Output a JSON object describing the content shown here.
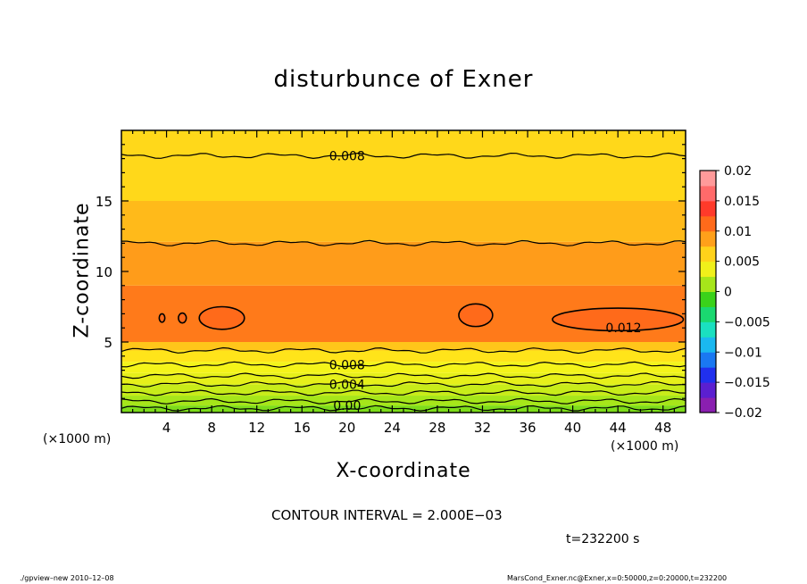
{
  "chart_data": {
    "type": "heatmap",
    "title": "disturbunce of Exner",
    "xlabel": "X-coordinate",
    "ylabel": "Z-coordinate",
    "x_unit": "(×1000 m)",
    "xlim": [
      0,
      50
    ],
    "ylim": [
      0,
      20
    ],
    "x_ticks": [
      "4",
      "8",
      "12",
      "16",
      "20",
      "24",
      "28",
      "32",
      "36",
      "40",
      "44",
      "48"
    ],
    "y_ticks": [
      "5",
      "10",
      "15"
    ],
    "colorbar": {
      "range": [
        -0.02,
        0.02
      ],
      "tick_labels": [
        "0.02",
        "0.015",
        "0.01",
        "0.005",
        "0",
        "−0.005",
        "−0.01",
        "−0.015",
        "−0.02"
      ],
      "colors": [
        "#8a1fb0",
        "#5b1fd0",
        "#2030ee",
        "#1a78f2",
        "#1ab8f0",
        "#1ae0c0",
        "#1ad870",
        "#3ad21a",
        "#a6e61a",
        "#f0f01a",
        "#ffd21a",
        "#ffa01a",
        "#ff6a1a",
        "#ff3a2a",
        "#ff6a6a",
        "#ff9a9a"
      ]
    },
    "bands": [
      {
        "z": [
          0.0,
          0.5
        ],
        "color": "#7ddc1a"
      },
      {
        "z": [
          0.5,
          1.2
        ],
        "color": "#a6e61a"
      },
      {
        "z": [
          1.2,
          2.0
        ],
        "color": "#c8ec1a"
      },
      {
        "z": [
          2.0,
          2.8
        ],
        "color": "#e6f01a"
      },
      {
        "z": [
          2.8,
          3.6
        ],
        "color": "#f4f41a"
      },
      {
        "z": [
          3.6,
          4.4
        ],
        "color": "#ffe41a"
      },
      {
        "z": [
          4.4,
          5.0
        ],
        "color": "#ffc61a"
      },
      {
        "z": [
          5.0,
          9.0
        ],
        "color": "#ff7a1a"
      },
      {
        "z": [
          9.0,
          12.1
        ],
        "color": "#ff9c1a"
      },
      {
        "z": [
          12.1,
          15.0
        ],
        "color": "#ffba1a"
      },
      {
        "z": [
          15.0,
          20.0
        ],
        "color": "#ffd81a"
      }
    ],
    "contour_lines_z": [
      0.3,
      0.8,
      1.4,
      2.0,
      2.6,
      3.4,
      4.4,
      12.0,
      18.2
    ],
    "contour_labels": [
      {
        "text": "0.008",
        "x": 20.0,
        "z": 18.2
      },
      {
        "text": "0.008",
        "x": 20.0,
        "z": 3.4
      },
      {
        "text": "0.004",
        "x": 20.0,
        "z": 2.0
      },
      {
        "text": "0.00",
        "x": 20.0,
        "z": 0.5
      },
      {
        "text": "0.012",
        "x": 44.5,
        "z": 6.0
      }
    ],
    "closed_contours": [
      {
        "cx": 3.6,
        "cz": 6.7,
        "rx": 0.25,
        "rz": 0.3
      },
      {
        "cx": 5.4,
        "cz": 6.7,
        "rx": 0.35,
        "rz": 0.35
      },
      {
        "cx": 8.9,
        "cz": 6.7,
        "rx": 2.0,
        "rz": 0.8
      },
      {
        "cx": 31.4,
        "cz": 6.9,
        "rx": 1.5,
        "rz": 0.8
      },
      {
        "cx": 44.0,
        "cz": 6.6,
        "rx": 5.8,
        "rz": 0.8
      }
    ],
    "annotations": {
      "contour_interval": "CONTOUR INTERVAL = 2.000E−03",
      "time": "t=232200 s"
    }
  },
  "footer": {
    "left": "./gpview–new   2010–12–08",
    "right": "MarsCond_Exner.nc@Exner,x=0:50000,z=0:20000,t=232200"
  }
}
